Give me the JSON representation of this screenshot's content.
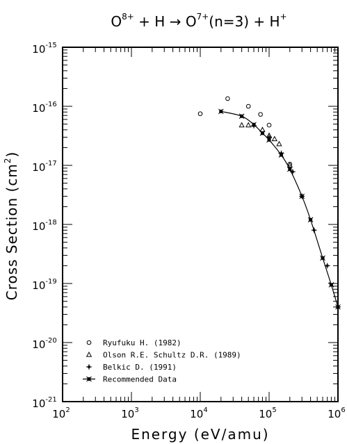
{
  "chart_data": {
    "type": "scatter",
    "title": "O^8+ + H → O^7+(n=3) + H^+",
    "title_parts": {
      "p1": "O",
      "p1_sup": "8+",
      "p2": " + H → ",
      "p3": "O",
      "p3_sup": "7+",
      "p4": "(n=3) + H",
      "p4_sup": "+"
    },
    "xlabel": "Energy (eV/amu)",
    "ylabel": "Cross Section (cm²)",
    "ylabel_parts": {
      "main": "Cross Section (cm",
      "sup": "2",
      "close": ")"
    },
    "x_scale": "log",
    "y_scale": "log",
    "xlim": [
      100,
      1000000
    ],
    "ylim": [
      1e-21,
      1e-15
    ],
    "x_ticks": [
      {
        "base": "10",
        "exp": "2"
      },
      {
        "base": "10",
        "exp": "3"
      },
      {
        "base": "10",
        "exp": "4"
      },
      {
        "base": "10",
        "exp": "5"
      },
      {
        "base": "10",
        "exp": "6"
      }
    ],
    "y_ticks": [
      {
        "base": "10",
        "exp": "-21"
      },
      {
        "base": "10",
        "exp": "-20"
      },
      {
        "base": "10",
        "exp": "-19"
      },
      {
        "base": "10",
        "exp": "-18"
      },
      {
        "base": "10",
        "exp": "-17"
      },
      {
        "base": "10",
        "exp": "-16"
      },
      {
        "base": "10",
        "exp": "-15"
      }
    ],
    "grid": false,
    "legend_position": "bottom-left",
    "series": [
      {
        "name": "Ryufuku H. (1982)",
        "marker": "circle",
        "line": false,
        "points": [
          [
            10000,
            7.5e-17
          ],
          [
            25000,
            1.35e-16
          ],
          [
            50000,
            1e-16
          ],
          [
            75000,
            7.3e-17
          ],
          [
            100000,
            4.8e-17
          ],
          [
            200000,
            1.05e-17
          ]
        ]
      },
      {
        "name": "Olson R.E. Schultz D.R. (1989)",
        "marker": "triangle",
        "line": false,
        "points": [
          [
            40000,
            4.8e-17
          ],
          [
            50000,
            4.8e-17
          ],
          [
            80000,
            4e-17
          ],
          [
            100000,
            3.2e-17
          ],
          [
            120000,
            2.8e-17
          ],
          [
            140000,
            2.3e-17
          ],
          [
            200000,
            1e-17
          ]
        ]
      },
      {
        "name": "Belkic D. (1991)",
        "marker": "cross",
        "line": false,
        "points": [
          [
            60000,
            4.7e-17
          ],
          [
            100000,
            3e-17
          ],
          [
            150000,
            1.6e-17
          ],
          [
            220000,
            7.8e-18
          ],
          [
            300000,
            3e-18
          ],
          [
            450000,
            8e-19
          ],
          [
            700000,
            2e-19
          ],
          [
            1000000,
            4e-20
          ]
        ]
      },
      {
        "name": "Recommended Data",
        "marker": "star",
        "line": true,
        "points": [
          [
            20000,
            8.2e-17
          ],
          [
            40000,
            6.8e-17
          ],
          [
            60000,
            4.9e-17
          ],
          [
            80000,
            3.5e-17
          ],
          [
            100000,
            2.7e-17
          ],
          [
            150000,
            1.5e-17
          ],
          [
            200000,
            8.6e-18
          ],
          [
            300000,
            3e-18
          ],
          [
            400000,
            1.2e-18
          ],
          [
            600000,
            2.7e-19
          ],
          [
            800000,
            9.5e-20
          ],
          [
            1000000,
            4e-20
          ]
        ]
      }
    ]
  }
}
